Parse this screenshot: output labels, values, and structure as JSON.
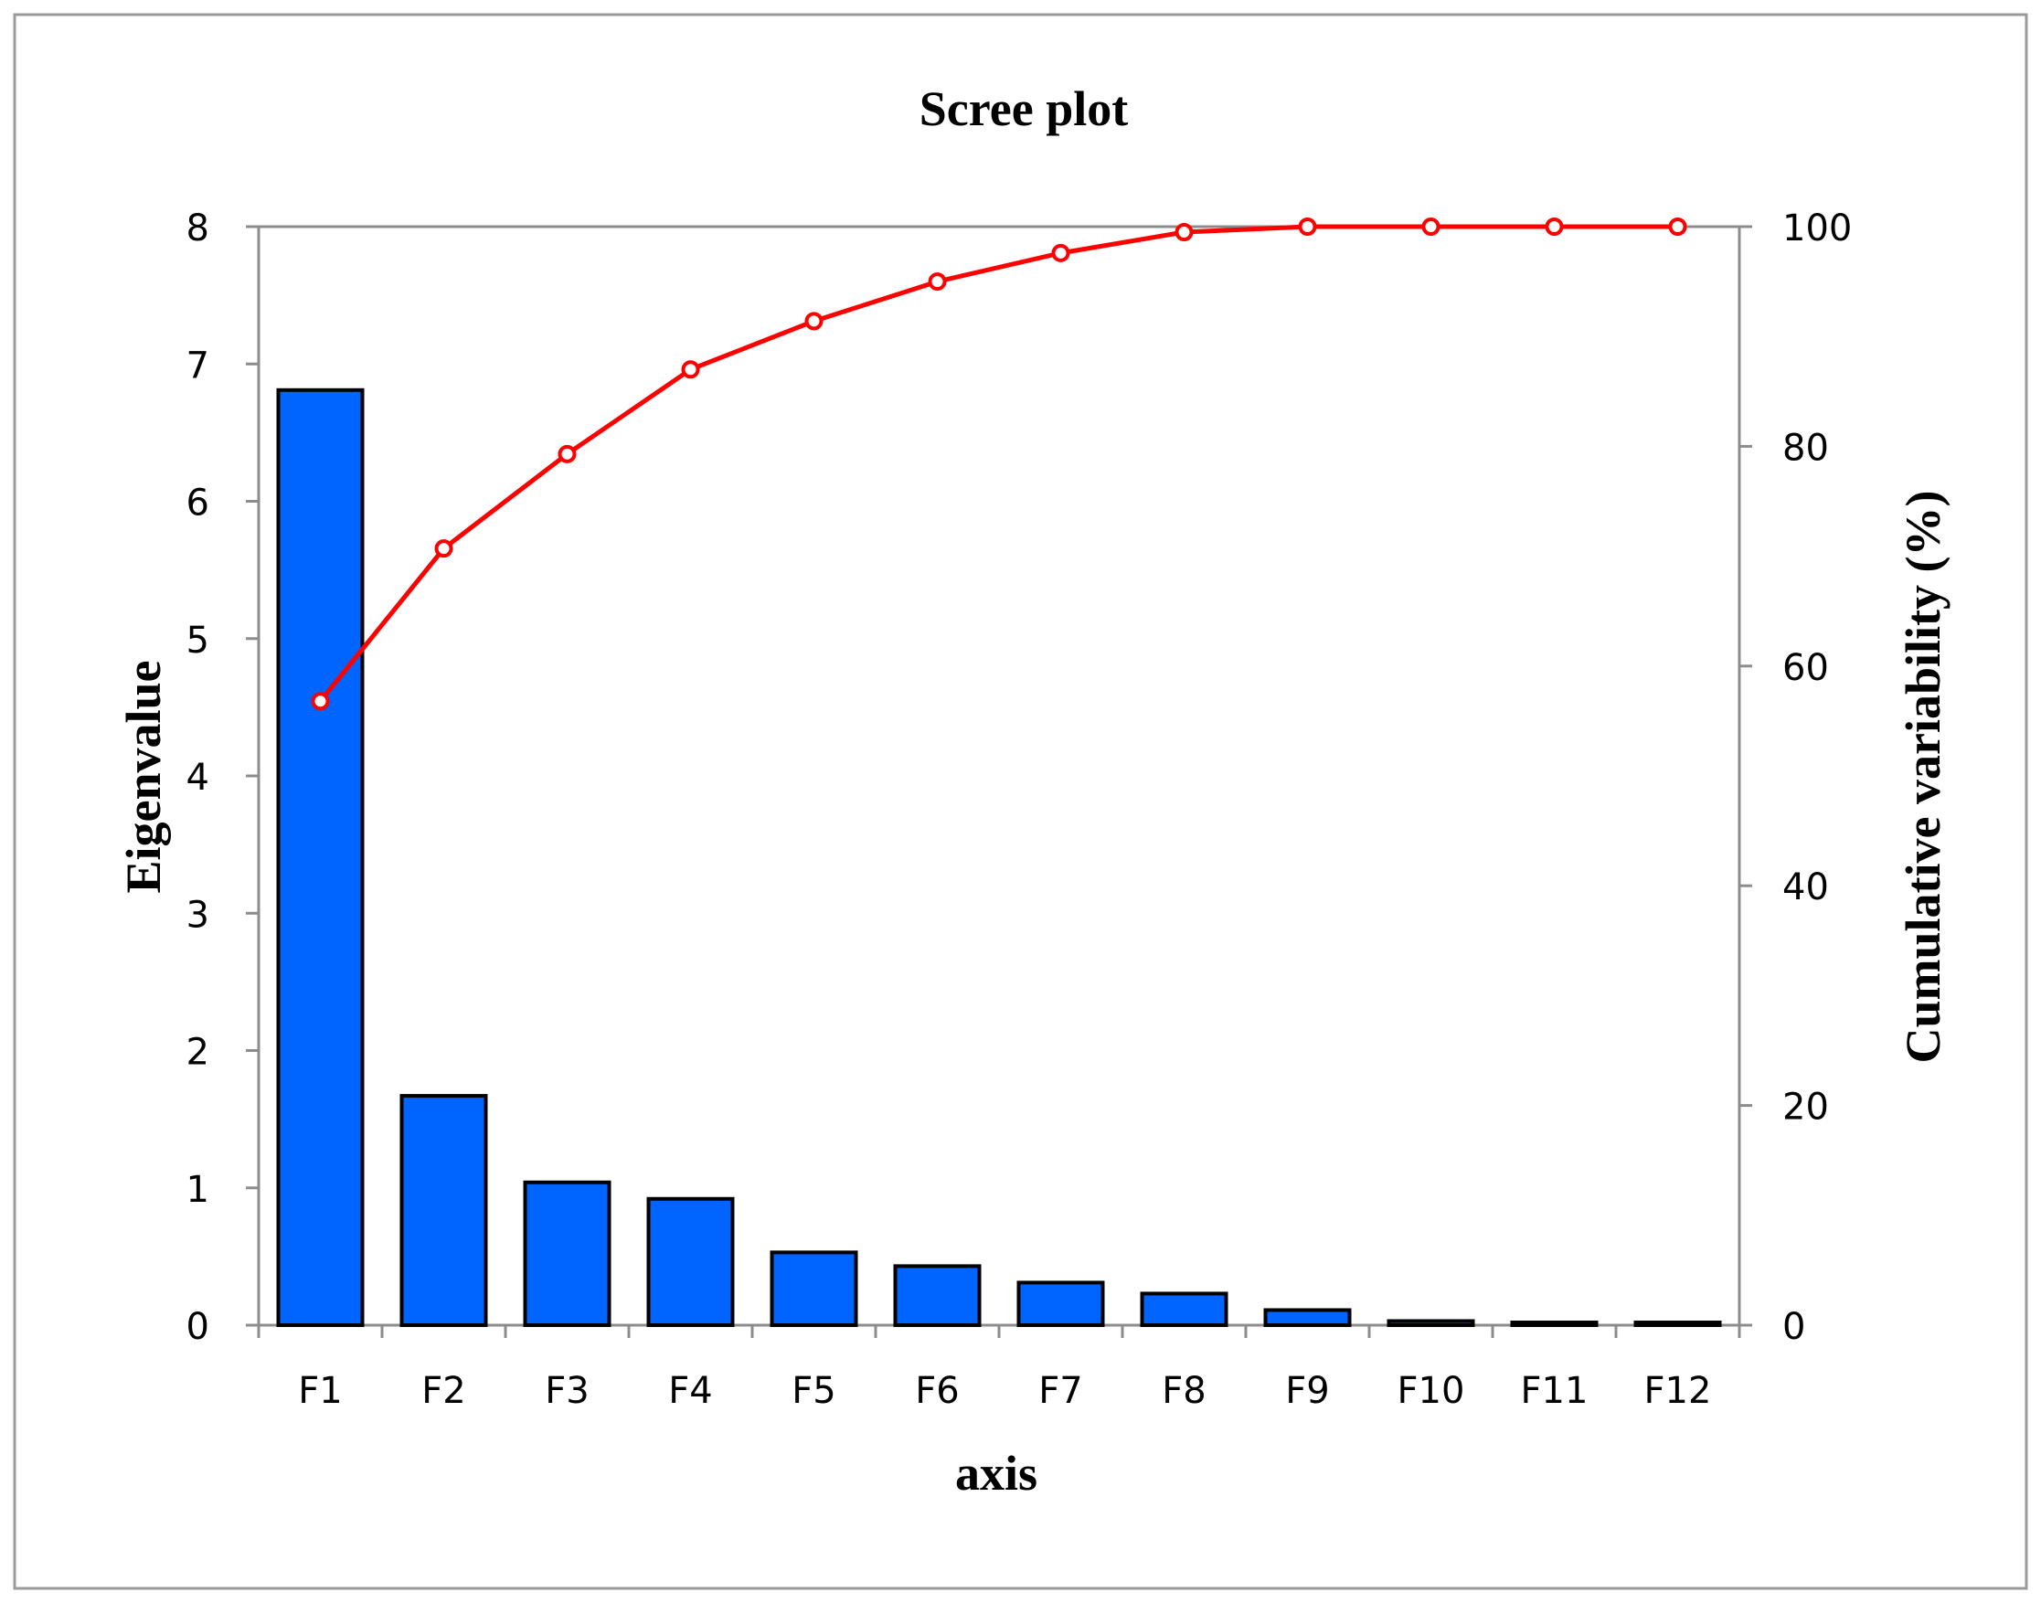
{
  "chart_data": {
    "type": "bar",
    "title": "Scree plot",
    "xlabel": "axis",
    "ylabel": "Eigenvalue",
    "y2label": "Cumulative variability (%)",
    "categories": [
      "F1",
      "F2",
      "F3",
      "F4",
      "F5",
      "F6",
      "F7",
      "F8",
      "F9",
      "F10",
      "F11",
      "F12"
    ],
    "ylim": [
      0,
      8
    ],
    "yticks": [
      "0",
      "1",
      "2",
      "3",
      "4",
      "5",
      "6",
      "7",
      "8"
    ],
    "y2lim": [
      0,
      100
    ],
    "y2ticks": [
      "0",
      "20",
      "40",
      "60",
      "80",
      "100"
    ],
    "grid": false,
    "legend": "none",
    "series": [
      {
        "type": "bar",
        "axis": "left",
        "values": [
          6.81,
          1.67,
          1.04,
          0.92,
          0.53,
          0.43,
          0.31,
          0.23,
          0.11,
          0.03,
          0.02,
          0.02
        ],
        "color": "#0064ff"
      },
      {
        "type": "line",
        "axis": "right",
        "values": [
          56.8,
          70.7,
          79.3,
          87.0,
          91.4,
          95.0,
          97.6,
          99.5,
          100.0,
          100.0,
          100.0,
          100.0
        ],
        "color": "#ff0000"
      }
    ]
  }
}
